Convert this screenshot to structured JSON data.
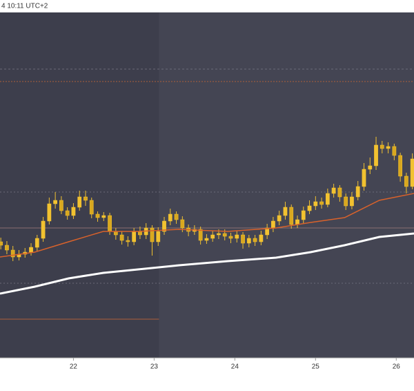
{
  "chart_data": {
    "type": "candlestick",
    "title": "4 10:11 UTC+2",
    "xlim": [
      21.09,
      26.22
    ],
    "ylim": [
      0,
      500
    ],
    "xticks": [
      22,
      23,
      24,
      25,
      26
    ],
    "background": "#444553",
    "highlight": {
      "xlim": [
        21.09,
        23.06
      ],
      "color": "#3d3e4c"
    },
    "color": "#f2c230",
    "x": [
      21.1,
      21.175,
      21.25,
      21.325,
      21.4,
      21.475,
      21.55,
      21.625,
      21.7,
      21.775,
      21.85,
      21.925,
      22.0,
      22.075,
      22.15,
      22.225,
      22.3,
      22.375,
      22.45,
      22.525,
      22.6,
      22.675,
      22.75,
      22.825,
      22.9,
      22.975,
      23.05,
      23.125,
      23.2,
      23.275,
      23.35,
      23.425,
      23.5,
      23.575,
      23.65,
      23.725,
      23.8,
      23.875,
      23.95,
      24.025,
      24.1,
      24.175,
      24.25,
      24.325,
      24.4,
      24.475,
      24.55,
      24.625,
      24.7,
      24.775,
      24.85,
      24.925,
      25.0,
      25.075,
      25.15,
      25.225,
      25.3,
      25.375,
      25.45,
      25.525,
      25.6,
      25.675,
      25.75,
      25.825,
      25.9,
      25.975,
      26.05,
      26.125,
      26.2
    ],
    "open": [
      168,
      163,
      156,
      146,
      150,
      153,
      160,
      173,
      198,
      223,
      228,
      213,
      206,
      218,
      233,
      228,
      208,
      203,
      206,
      183,
      178,
      170,
      168,
      183,
      178,
      188,
      168,
      183,
      198,
      208,
      200,
      188,
      183,
      186,
      170,
      173,
      178,
      180,
      176,
      173,
      178,
      166,
      173,
      168,
      178,
      188,
      198,
      206,
      218,
      193,
      200,
      213,
      220,
      226,
      222,
      238,
      246,
      233,
      220,
      233,
      248,
      273,
      278,
      308,
      303,
      306,
      293,
      263,
      248
    ],
    "high": [
      174,
      169,
      162,
      156,
      159,
      166,
      178,
      204,
      232,
      240,
      234,
      218,
      224,
      242,
      242,
      232,
      212,
      211,
      210,
      188,
      183,
      176,
      188,
      190,
      195,
      192,
      189,
      204,
      216,
      212,
      205,
      193,
      192,
      190,
      179,
      184,
      186,
      186,
      181,
      184,
      182,
      178,
      178,
      184,
      194,
      204,
      213,
      226,
      222,
      206,
      219,
      228,
      234,
      232,
      245,
      252,
      250,
      238,
      240,
      256,
      282,
      290,
      320,
      314,
      312,
      310,
      297,
      268,
      296
    ],
    "low": [
      157,
      150,
      140,
      141,
      145,
      148,
      155,
      168,
      193,
      216,
      208,
      200,
      201,
      213,
      220,
      202,
      197,
      198,
      178,
      171,
      164,
      161,
      163,
      172,
      172,
      148,
      162,
      178,
      192,
      194,
      182,
      176,
      178,
      164,
      165,
      168,
      172,
      170,
      166,
      167,
      158,
      160,
      162,
      163,
      172,
      182,
      192,
      200,
      187,
      188,
      195,
      208,
      214,
      216,
      218,
      232,
      226,
      214,
      215,
      228,
      242,
      266,
      272,
      296,
      296,
      286,
      255,
      238,
      244
    ],
    "close": [
      163,
      156,
      146,
      150,
      153,
      160,
      173,
      198,
      223,
      228,
      213,
      206,
      218,
      233,
      228,
      208,
      203,
      206,
      183,
      178,
      170,
      168,
      183,
      178,
      188,
      168,
      183,
      198,
      208,
      200,
      188,
      183,
      186,
      170,
      173,
      178,
      180,
      176,
      173,
      178,
      166,
      173,
      168,
      178,
      188,
      198,
      206,
      218,
      193,
      200,
      213,
      220,
      226,
      222,
      238,
      246,
      233,
      220,
      233,
      248,
      273,
      278,
      308,
      303,
      306,
      293,
      263,
      248,
      288
    ],
    "overlays": [
      {
        "color": "#d9622b",
        "width": 1.5,
        "x": [
          21.09,
          21.52,
          21.94,
          22.37,
          22.8,
          23.31,
          23.91,
          24.51,
          24.94,
          25.36,
          25.79,
          26.22
        ],
        "values": [
          146,
          153,
          168,
          183,
          183,
          186,
          183,
          188,
          196,
          203,
          228,
          238
        ]
      },
      {
        "color": "#ffffff",
        "width": 3,
        "x": [
          21.09,
          21.52,
          21.94,
          22.37,
          22.8,
          23.31,
          23.91,
          24.51,
          24.94,
          25.36,
          25.79,
          26.22
        ],
        "values": [
          93,
          103,
          115,
          123,
          128,
          134,
          140,
          145,
          153,
          163,
          175,
          180
        ]
      }
    ],
    "levels": [
      {
        "value": 418,
        "color": "#6a6b78",
        "dash": "3 3"
      },
      {
        "value": 400,
        "color": "#b0603a",
        "dash": "2 2"
      },
      {
        "value": 240,
        "color": "#6a6b78",
        "dash": "2 3"
      },
      {
        "value": 188,
        "color": "#8a6f70",
        "dash": "none"
      },
      {
        "value": 108,
        "color": "#6a6b78",
        "dash": "2 3"
      },
      {
        "value": 56,
        "color": "#b0603a",
        "dash": "none",
        "x_end": 23.06
      }
    ]
  }
}
